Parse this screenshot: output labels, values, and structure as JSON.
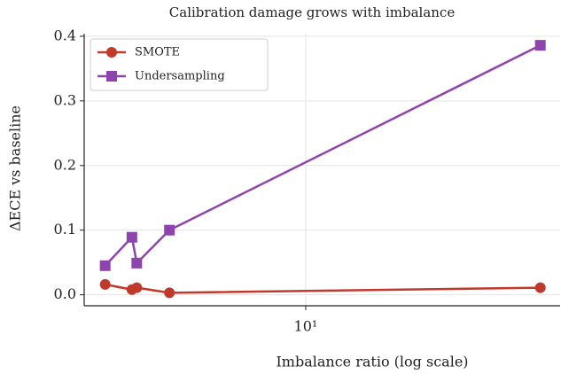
{
  "chart_data": {
    "type": "line",
    "title": "Calibration damage grows with imbalance",
    "xlabel": "Imbalance ratio (log scale)",
    "ylabel": "ΔECE vs baseline",
    "xscale": "log",
    "xlim": [
      1.84,
      69.9
    ],
    "xticks": [
      {
        "value": 10,
        "label": "10¹"
      }
    ],
    "ylim": [
      -0.017,
      0.404
    ],
    "yticks": [
      {
        "value": 0,
        "label": "0.0"
      },
      0.1,
      0.2,
      0.3,
      0.4
    ],
    "grid": true,
    "legend": "upper left",
    "x": [
      2.16,
      2.65,
      2.75,
      3.53,
      60.1
    ],
    "series": [
      {
        "name": "SMOTE",
        "color": "#c0392b",
        "marker": "circle",
        "values": [
          0.016,
          0.008,
          0.011,
          0.003,
          0.011
        ]
      },
      {
        "name": "Undersampling",
        "color": "#8e44ad",
        "marker": "square",
        "values": [
          0.045,
          0.089,
          0.049,
          0.1,
          0.386
        ]
      }
    ]
  }
}
